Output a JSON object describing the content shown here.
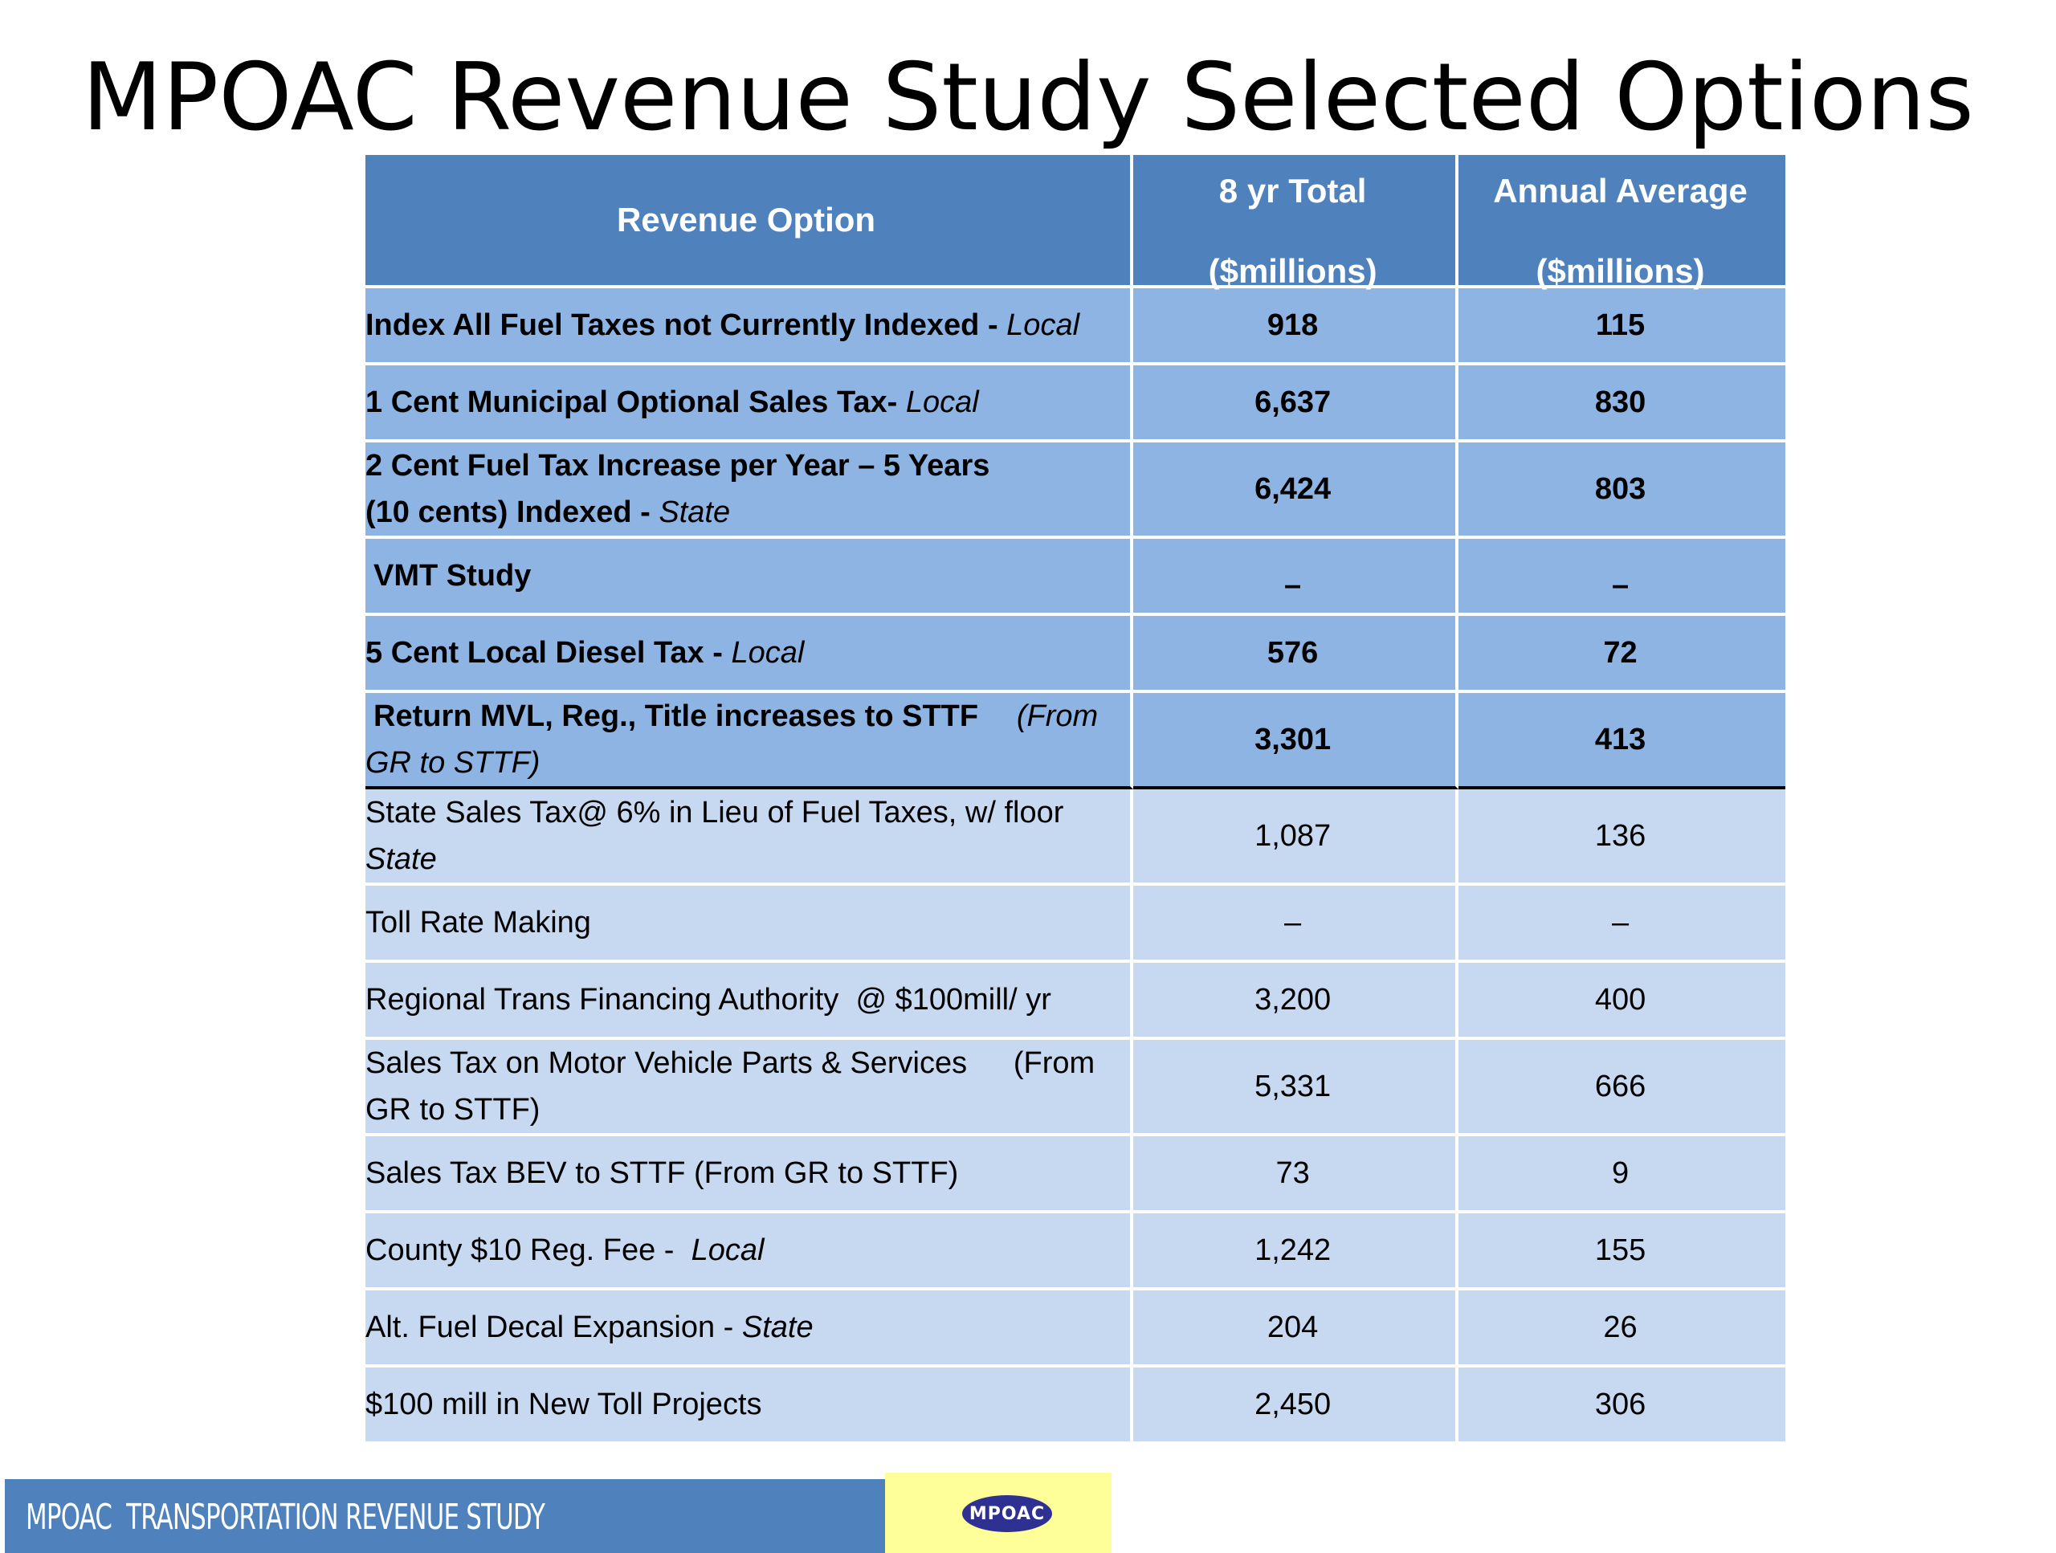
{
  "slide": {
    "title": "MPOAC Revenue Study Selected Options"
  },
  "table": {
    "headers": {
      "option": "Revenue Option",
      "total_line1": "8 yr Total",
      "total_line2": "($millions)",
      "avg_line1": "Annual Average",
      "avg_line2": "($millions)"
    },
    "rows": [
      {
        "label": "Index All Fuel Taxes not Currently Indexed",
        "sep": " - ",
        "tag": "Local",
        "total": "918",
        "avg": "115"
      },
      {
        "label": "1 Cent Municipal Optional Sales Tax-",
        "sep": " ",
        "tag": "Local",
        "total": "6,637",
        "avg": "830"
      },
      {
        "label_line1": "2 Cent Fuel Tax Increase per Year – 5 Years",
        "label_line2": "(10 cents) Indexed",
        "sep": " - ",
        "tag": "State",
        "total": "6,424",
        "avg": "803"
      },
      {
        "label": "VMT Study",
        "total": "–",
        "avg": "–"
      },
      {
        "label": "5 Cent Local Diesel Tax",
        "sep": " - ",
        "tag": "Local",
        "total": "576",
        "avg": "72"
      },
      {
        "label": "Return MVL, Reg., Title increases to STTF",
        "note_a": "(From",
        "note_b": "GR to STTF)",
        "total": "3,301",
        "avg": "413"
      },
      {
        "label": "State Sales Tax@ 6% in Lieu of Fuel Taxes, w/ floor",
        "tag": "State",
        "total": "1,087",
        "avg": "136"
      },
      {
        "label": "Toll Rate Making",
        "total": "–",
        "avg": "–"
      },
      {
        "label": "Regional Trans Financing Authority  @ $100mill/ yr",
        "total": "3,200",
        "avg": "400"
      },
      {
        "label": "Sales Tax on Motor Vehicle Parts & Services",
        "note_a": "(From",
        "note_b": "GR to STTF)",
        "total": "5,331",
        "avg": "666"
      },
      {
        "label": "Sales Tax BEV to STTF (From GR to STTF)",
        "total": "73",
        "avg": "9"
      },
      {
        "label": "County $10 Reg. Fee -  ",
        "tag": "Local",
        "total": "1,242",
        "avg": "155"
      },
      {
        "label": "Alt. Fuel Decal Expansion - ",
        "tag": "State",
        "total": "204",
        "avg": "26"
      },
      {
        "label": "$100 mill in New Toll Projects",
        "total": "2,450",
        "avg": "306"
      }
    ]
  },
  "footer": {
    "text": "MPOAC  TRANSPORTATION REVENUE STUDY",
    "logo_text": "MPOAC"
  },
  "colors": {
    "header_blue": "#4f81bd",
    "highlight_row": "#8eb4e3",
    "light_row": "#c6d9f1",
    "logo_box": "#ffff99",
    "logo_oval": "#2e3192"
  }
}
